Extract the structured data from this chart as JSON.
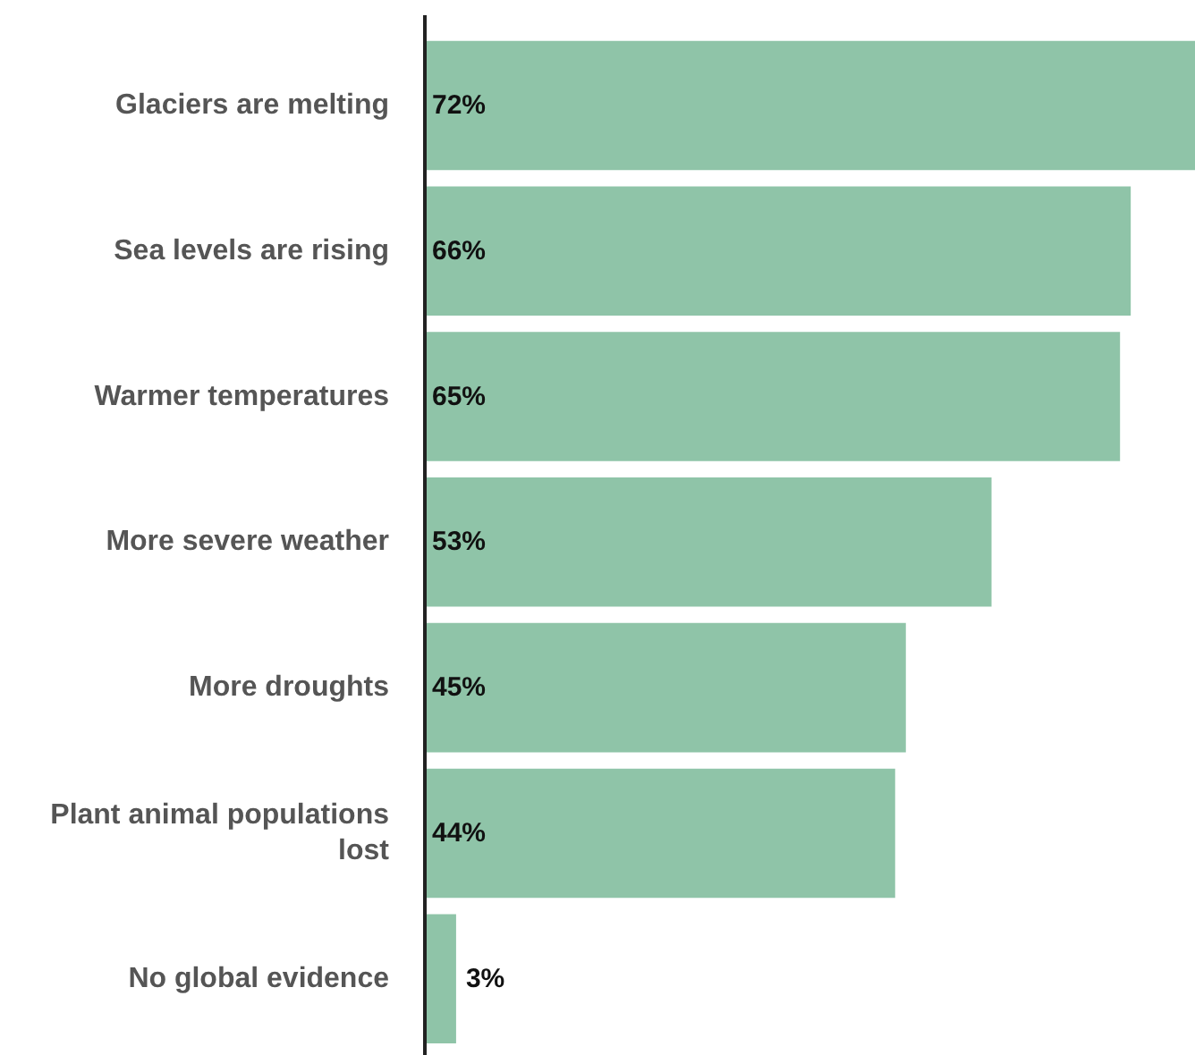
{
  "chart_data": {
    "type": "bar",
    "orientation": "horizontal",
    "categories": [
      "Glaciers are melting",
      "Sea levels are rising",
      "Warmer temperatures",
      "More severe weather",
      "More droughts",
      "Plant animal populations lost",
      "No global evidence"
    ],
    "values": [
      72,
      66,
      65,
      53,
      45,
      44,
      3
    ],
    "color": "#8fc4a8",
    "data_labels": true,
    "value_labels": [
      "72%",
      "66%",
      "65%",
      "53%",
      "45%",
      "44%",
      "3%"
    ],
    "grid": false
  }
}
